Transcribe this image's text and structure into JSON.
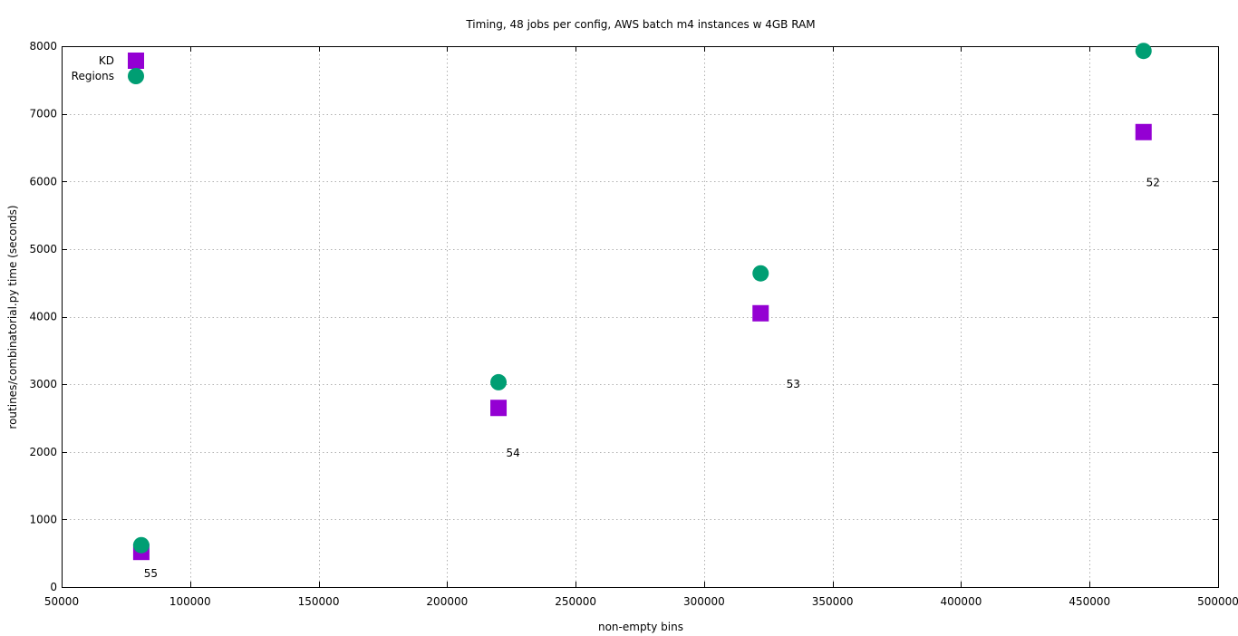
{
  "chart_data": {
    "type": "scatter",
    "title": "Timing, 48 jobs per config, AWS batch m4 instances w 4GB RAM",
    "xlabel": "non-empty bins",
    "ylabel": "routines/combinatorial.py time (seconds)",
    "xlim": [
      50000,
      500000
    ],
    "ylim": [
      0,
      8000
    ],
    "xticks": [
      50000,
      100000,
      150000,
      200000,
      250000,
      300000,
      350000,
      400000,
      450000,
      500000
    ],
    "yticks": [
      0,
      1000,
      2000,
      3000,
      4000,
      5000,
      6000,
      7000,
      8000
    ],
    "grid": true,
    "legend_position": "top-left",
    "series": [
      {
        "name": "KD",
        "marker": "square",
        "color": "#9400d3",
        "points": [
          {
            "x": 81000,
            "y": 520
          },
          {
            "x": 220000,
            "y": 2650
          },
          {
            "x": 322000,
            "y": 4050
          },
          {
            "x": 471000,
            "y": 6730
          }
        ]
      },
      {
        "name": "Regions",
        "marker": "circle",
        "color": "#009e73",
        "points": [
          {
            "x": 81000,
            "y": 620
          },
          {
            "x": 220000,
            "y": 3030
          },
          {
            "x": 322000,
            "y": 4640
          },
          {
            "x": 471000,
            "y": 7930
          }
        ]
      }
    ],
    "annotations": [
      {
        "text": "55",
        "x": 82000,
        "y": 200
      },
      {
        "text": "54",
        "x": 223000,
        "y": 1980
      },
      {
        "text": "53",
        "x": 332000,
        "y": 3000
      },
      {
        "text": "52",
        "x": 472000,
        "y": 5980
      }
    ]
  }
}
